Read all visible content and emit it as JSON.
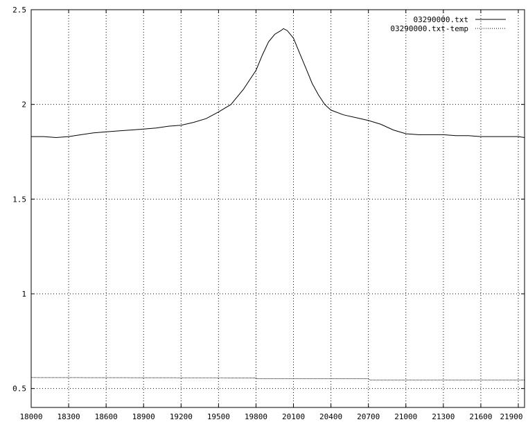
{
  "chart_data": {
    "type": "line",
    "title": "",
    "xlabel": "",
    "ylabel": "",
    "xlim": [
      18000,
      21950
    ],
    "ylim": [
      0.4,
      2.5
    ],
    "grid": true,
    "legend_position": "top-right",
    "x_ticks": [
      "18000",
      "18300",
      "18600",
      "18900",
      "19200",
      "19500",
      "19800",
      "20100",
      "20400",
      "20700",
      "21000",
      "21300",
      "21600",
      "21900"
    ],
    "y_ticks": [
      "0.5",
      "1",
      "1.5",
      "2",
      "2.5"
    ],
    "series": [
      {
        "name": "03290000.txt",
        "style": "solid",
        "color": "#000000",
        "points": [
          [
            18000,
            1.83
          ],
          [
            18100,
            1.83
          ],
          [
            18200,
            1.825
          ],
          [
            18300,
            1.83
          ],
          [
            18400,
            1.84
          ],
          [
            18500,
            1.85
          ],
          [
            18600,
            1.855
          ],
          [
            18700,
            1.86
          ],
          [
            18800,
            1.865
          ],
          [
            18900,
            1.87
          ],
          [
            19000,
            1.875
          ],
          [
            19100,
            1.885
          ],
          [
            19200,
            1.89
          ],
          [
            19300,
            1.905
          ],
          [
            19400,
            1.925
          ],
          [
            19500,
            1.96
          ],
          [
            19600,
            2.0
          ],
          [
            19650,
            2.04
          ],
          [
            19700,
            2.08
          ],
          [
            19750,
            2.13
          ],
          [
            19800,
            2.18
          ],
          [
            19850,
            2.26
          ],
          [
            19900,
            2.33
          ],
          [
            19950,
            2.37
          ],
          [
            20000,
            2.39
          ],
          [
            20020,
            2.4
          ],
          [
            20050,
            2.39
          ],
          [
            20100,
            2.35
          ],
          [
            20150,
            2.27
          ],
          [
            20200,
            2.19
          ],
          [
            20250,
            2.11
          ],
          [
            20300,
            2.05
          ],
          [
            20350,
            2.0
          ],
          [
            20400,
            1.97
          ],
          [
            20500,
            1.945
          ],
          [
            20600,
            1.93
          ],
          [
            20700,
            1.915
          ],
          [
            20800,
            1.895
          ],
          [
            20900,
            1.865
          ],
          [
            21000,
            1.845
          ],
          [
            21100,
            1.84
          ],
          [
            21200,
            1.84
          ],
          [
            21300,
            1.84
          ],
          [
            21400,
            1.835
          ],
          [
            21500,
            1.835
          ],
          [
            21600,
            1.83
          ],
          [
            21700,
            1.83
          ],
          [
            21800,
            1.83
          ],
          [
            21900,
            1.83
          ],
          [
            21950,
            1.825
          ]
        ]
      },
      {
        "name": "03290000.txt-temp",
        "style": "dotted",
        "color": "#000000",
        "points": [
          [
            18000,
            0.558
          ],
          [
            19800,
            0.556
          ],
          [
            19810,
            0.552
          ],
          [
            20700,
            0.552
          ],
          [
            20710,
            0.545
          ],
          [
            21950,
            0.545
          ]
        ]
      }
    ]
  }
}
